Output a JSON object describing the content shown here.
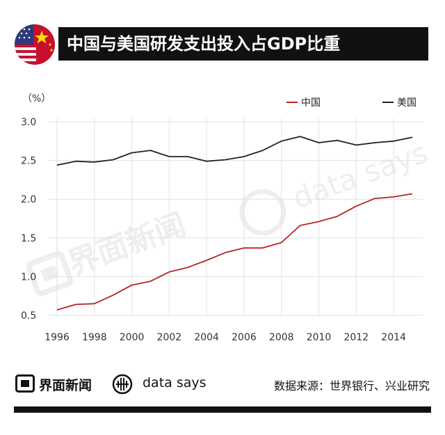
{
  "header": {
    "title": "中国与美国研发支出投入占GDP比重"
  },
  "chart_data": {
    "type": "line",
    "ylabel": "（%）",
    "ylim": [
      0.5,
      3.0
    ],
    "yticks": [
      "0.5",
      "1.0",
      "1.5",
      "2.0",
      "2.5",
      "3.0"
    ],
    "xlim": [
      1996,
      2015
    ],
    "xticks": [
      "1996",
      "1998",
      "2000",
      "2002",
      "2004",
      "2006",
      "2008",
      "2010",
      "2012",
      "2014"
    ],
    "grid": true,
    "legend_position": "top-right",
    "x": [
      1996,
      1997,
      1998,
      1999,
      2000,
      2001,
      2002,
      2003,
      2004,
      2005,
      2006,
      2007,
      2008,
      2009,
      2010,
      2011,
      2012,
      2013,
      2014,
      2015
    ],
    "series": [
      {
        "name": "中国",
        "color": "#b5251f",
        "values": [
          0.57,
          0.64,
          0.65,
          0.76,
          0.89,
          0.94,
          1.06,
          1.12,
          1.21,
          1.31,
          1.37,
          1.37,
          1.44,
          1.66,
          1.71,
          1.78,
          1.91,
          2.01,
          2.03,
          2.07
        ]
      },
      {
        "name": "美国",
        "color": "#222222",
        "values": [
          2.44,
          2.49,
          2.48,
          2.51,
          2.6,
          2.63,
          2.55,
          2.55,
          2.49,
          2.51,
          2.55,
          2.63,
          2.75,
          2.81,
          2.73,
          2.76,
          2.7,
          2.73,
          2.75,
          2.8
        ]
      }
    ],
    "watermarks": [
      "界面新闻",
      "data says"
    ]
  },
  "footer": {
    "brand": "界面新闻",
    "data_says": "data says",
    "source": "数据来源：世界银行、兴业研究"
  }
}
